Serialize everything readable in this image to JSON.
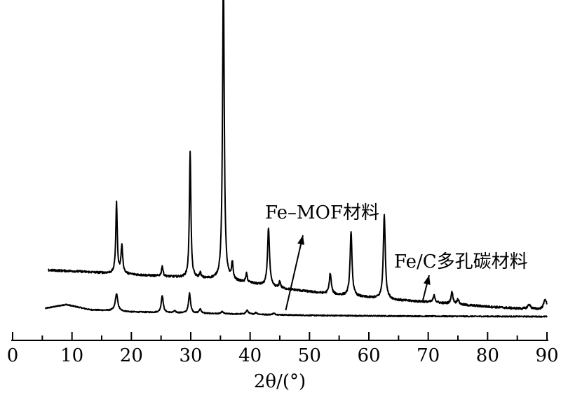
{
  "chart_data": {
    "type": "line",
    "title": "",
    "xlabel": "2θ/(°)",
    "ylabel": "",
    "xlim": [
      0,
      90
    ],
    "xticks": [
      0,
      10,
      20,
      30,
      40,
      50,
      60,
      70,
      80,
      90
    ],
    "grid": false,
    "legend": "none",
    "annotations": [
      {
        "text": "Fe–MOF材料",
        "points_to_series": "Fe-MOF",
        "arrow_tip_x": 46
      },
      {
        "text": "Fe/C多孔碳材料",
        "points_to_series": "Fe/C",
        "arrow_tip_x": 69
      }
    ],
    "series": [
      {
        "id": "Fe-MOF",
        "color": "#000000",
        "x_start": 5.5,
        "x_end": 90,
        "baseline": [
          [
            5.5,
            0.48
          ],
          [
            9,
            0.7
          ],
          [
            13,
            0.4
          ],
          [
            17,
            0.34
          ],
          [
            20,
            0.27
          ],
          [
            30,
            0.2
          ],
          [
            40,
            0.13
          ],
          [
            50,
            0.07
          ],
          [
            60,
            0.04
          ],
          [
            70,
            0.02
          ],
          [
            80,
            0.01
          ],
          [
            90,
            0.0
          ]
        ],
        "peaks": [
          {
            "x": 17.5,
            "h": 1.0,
            "w": 0.25
          },
          {
            "x": 25.2,
            "h": 1.0,
            "w": 0.2
          },
          {
            "x": 27.3,
            "h": 0.1,
            "w": 0.2
          },
          {
            "x": 29.8,
            "h": 1.15,
            "w": 0.2
          },
          {
            "x": 31.6,
            "h": 0.25,
            "w": 0.2
          },
          {
            "x": 35.3,
            "h": 0.12,
            "w": 0.2
          },
          {
            "x": 39.5,
            "h": 0.22,
            "w": 0.25
          },
          {
            "x": 41.0,
            "h": 0.1,
            "w": 0.25
          },
          {
            "x": 44.0,
            "h": 0.08,
            "w": 0.25
          }
        ]
      },
      {
        "id": "Fe/C",
        "color": "#000000",
        "x_start": 6,
        "x_end": 90,
        "baseline": [
          [
            6,
            2.6
          ],
          [
            10,
            2.55
          ],
          [
            20,
            2.35
          ],
          [
            30,
            2.15
          ],
          [
            35,
            2.05
          ],
          [
            40,
            1.85
          ],
          [
            45,
            1.55
          ],
          [
            50,
            1.35
          ],
          [
            55,
            1.15
          ],
          [
            60,
            1.0
          ],
          [
            65,
            0.85
          ],
          [
            70,
            0.75
          ],
          [
            75,
            0.6
          ],
          [
            80,
            0.48
          ],
          [
            85,
            0.37
          ],
          [
            90,
            0.3
          ]
        ],
        "peaks": [
          {
            "x": 17.5,
            "h": 4.1,
            "w": 0.15
          },
          {
            "x": 18.4,
            "h": 1.6,
            "w": 0.18
          },
          {
            "x": 25.2,
            "h": 0.6,
            "w": 0.15
          },
          {
            "x": 29.9,
            "h": 7.4,
            "w": 0.15
          },
          {
            "x": 31.6,
            "h": 0.3,
            "w": 0.15
          },
          {
            "x": 35.5,
            "h": 18.0,
            "w": 0.17
          },
          {
            "x": 37.0,
            "h": 1.0,
            "w": 0.15
          },
          {
            "x": 39.4,
            "h": 0.5,
            "w": 0.15
          },
          {
            "x": 43.1,
            "h": 3.4,
            "w": 0.2
          },
          {
            "x": 45.0,
            "h": 0.4,
            "w": 0.15
          },
          {
            "x": 53.5,
            "h": 1.2,
            "w": 0.2
          },
          {
            "x": 57.0,
            "h": 3.7,
            "w": 0.2
          },
          {
            "x": 62.6,
            "h": 4.9,
            "w": 0.2
          },
          {
            "x": 71.0,
            "h": 0.4,
            "w": 0.2
          },
          {
            "x": 74.0,
            "h": 0.7,
            "w": 0.2
          },
          {
            "x": 75.0,
            "h": 0.3,
            "w": 0.2
          },
          {
            "x": 87.0,
            "h": 0.25,
            "w": 0.3
          },
          {
            "x": 89.7,
            "h": 0.6,
            "w": 0.3
          }
        ]
      }
    ]
  }
}
